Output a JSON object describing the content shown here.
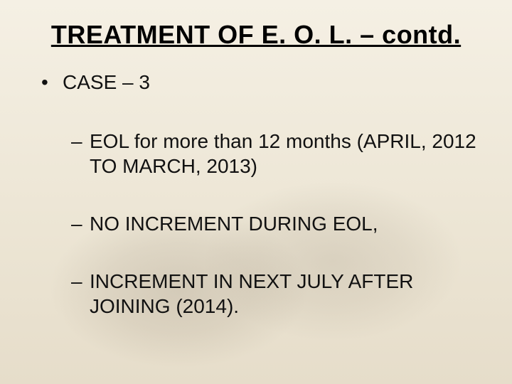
{
  "slide": {
    "title": "TREATMENT OF E. O. L. – contd.",
    "background_gradient_top": "#f5f0e4",
    "background_gradient_bottom": "#e6ddca",
    "title_fontsize": 36,
    "title_underline": true,
    "body_fontsize": 28,
    "text_color": "#111111",
    "bullets": [
      {
        "level": 1,
        "marker": "•",
        "text": "CASE – 3"
      },
      {
        "level": 2,
        "marker": "–",
        "text": "EOL for more than 12 months (APRIL, 2012 TO MARCH, 2013)"
      },
      {
        "level": 2,
        "marker": "–",
        "text": "NO INCREMENT DURING EOL,"
      },
      {
        "level": 2,
        "marker": "–",
        "text": "INCREMENT IN NEXT JULY AFTER JOINING (2014)."
      }
    ]
  }
}
